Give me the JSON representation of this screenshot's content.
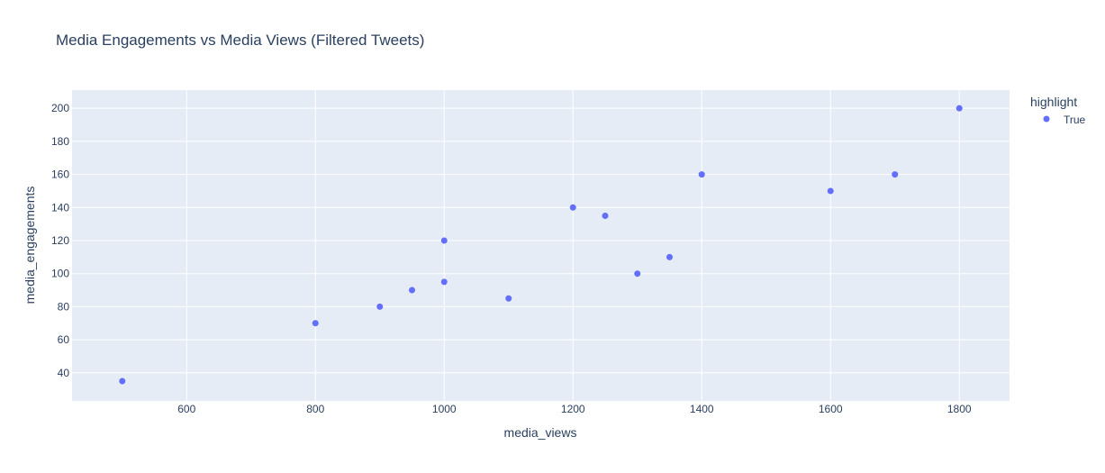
{
  "chart_data": {
    "type": "scatter",
    "title": "Media Engagements vs Media Views (Filtered Tweets)",
    "xlabel": "media_views",
    "ylabel": "media_engagements",
    "xlim": [
      422,
      1878
    ],
    "ylim": [
      23,
      211
    ],
    "x_ticks": [
      600,
      800,
      1000,
      1200,
      1400,
      1600,
      1800
    ],
    "y_ticks": [
      40,
      60,
      80,
      100,
      120,
      140,
      160,
      180,
      200
    ],
    "grid": true,
    "legend": {
      "title": "highlight",
      "placement": "right",
      "entries": [
        "True"
      ]
    },
    "series": [
      {
        "name": "True",
        "color": "#636efa",
        "points": [
          {
            "x": 500,
            "y": 35
          },
          {
            "x": 800,
            "y": 70
          },
          {
            "x": 900,
            "y": 80
          },
          {
            "x": 950,
            "y": 90
          },
          {
            "x": 1000,
            "y": 95
          },
          {
            "x": 1000,
            "y": 120
          },
          {
            "x": 1100,
            "y": 85
          },
          {
            "x": 1200,
            "y": 140
          },
          {
            "x": 1250,
            "y": 135
          },
          {
            "x": 1300,
            "y": 100
          },
          {
            "x": 1350,
            "y": 110
          },
          {
            "x": 1400,
            "y": 160
          },
          {
            "x": 1600,
            "y": 150
          },
          {
            "x": 1700,
            "y": 160
          },
          {
            "x": 1800,
            "y": 200
          }
        ]
      }
    ],
    "colors": {
      "plot_bg": "#e5ecf6",
      "grid": "#ffffff",
      "text": "#2a3f5f"
    }
  }
}
